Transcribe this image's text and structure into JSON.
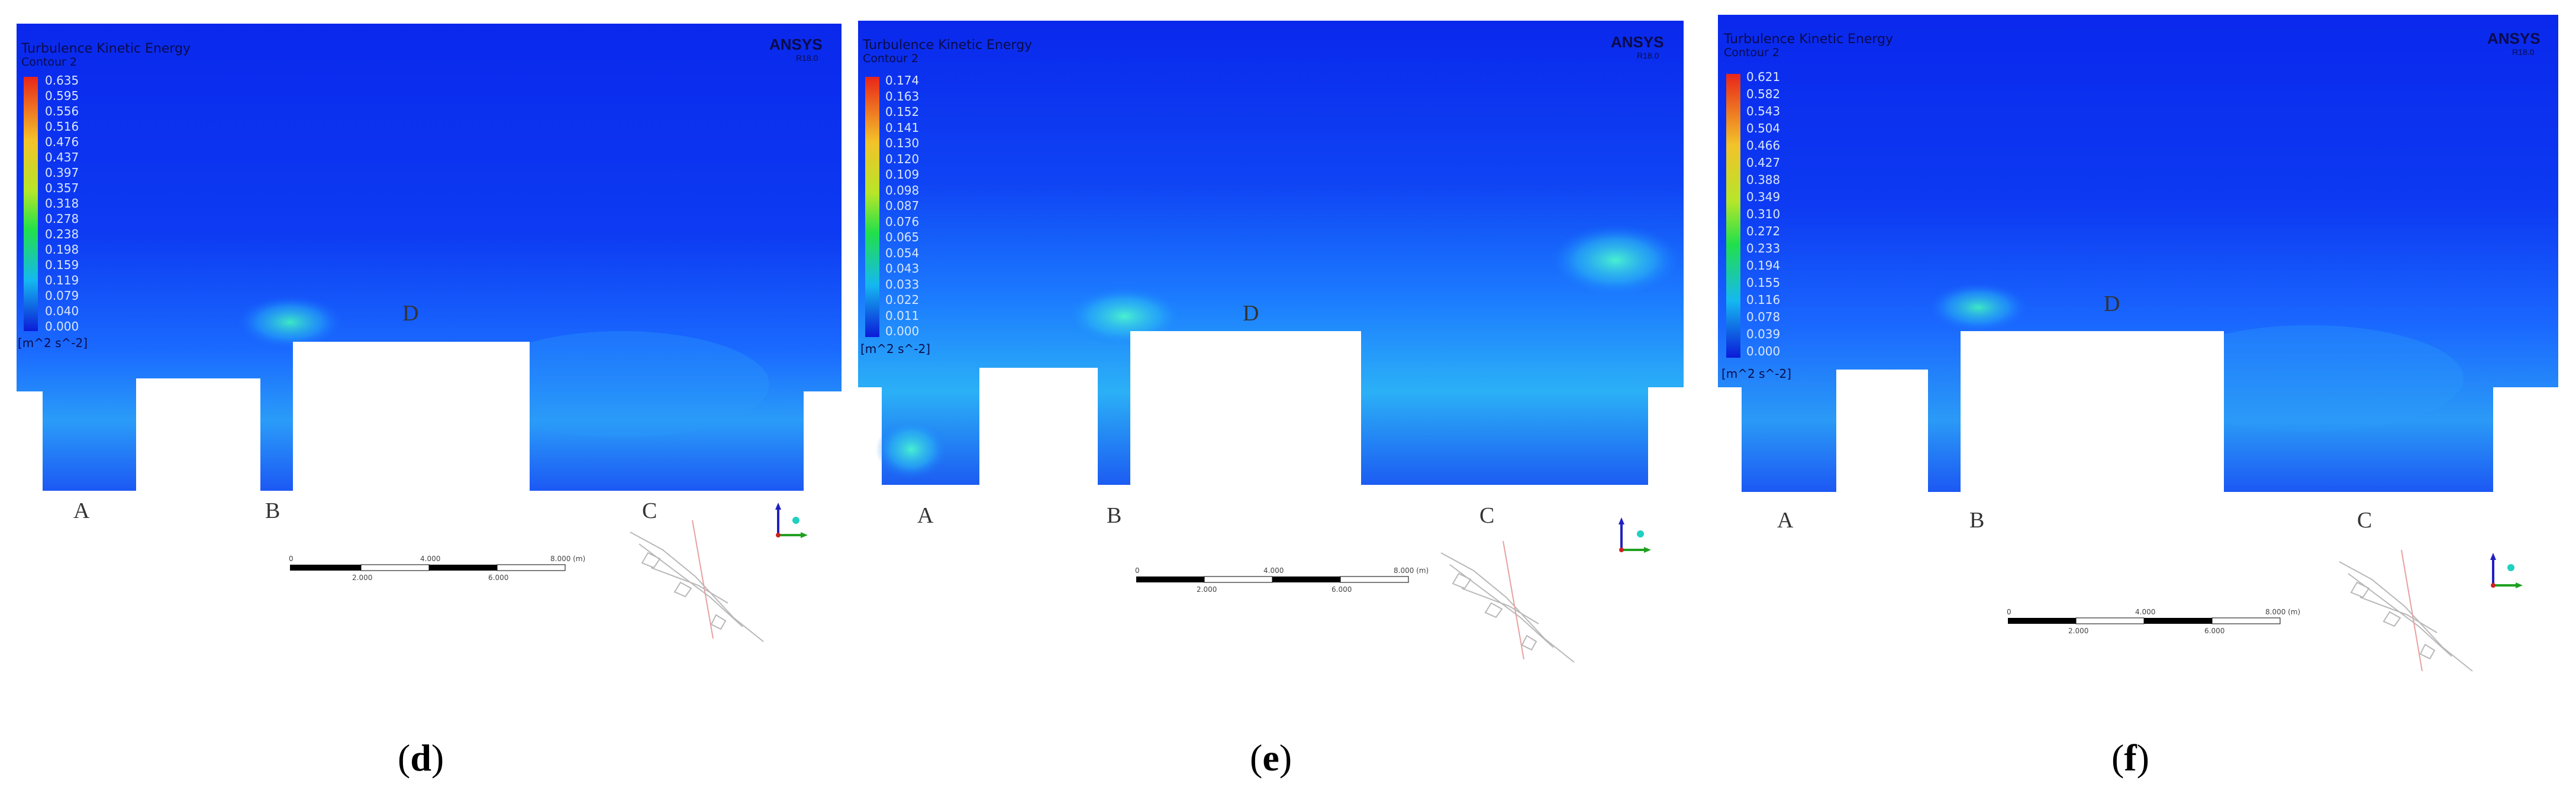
{
  "panels": [
    {
      "id": "d",
      "caption_open": "(",
      "caption_letter": "d",
      "caption_close": ")",
      "legend_title": "Turbulence Kinetic Energy",
      "legend_sub": "Contour 2",
      "legend_values": [
        "0.635",
        "0.595",
        "0.556",
        "0.516",
        "0.476",
        "0.437",
        "0.397",
        "0.357",
        "0.318",
        "0.278",
        "0.238",
        "0.198",
        "0.159",
        "0.119",
        "0.079",
        "0.040",
        "0.000"
      ],
      "legend_unit": "[m^2 s^-2]",
      "ansys": "ANSYS",
      "ansys_version": "R18.0",
      "labels": {
        "A": "A",
        "B": "B",
        "C": "C",
        "D": "D"
      },
      "scale_ticks_top": [
        "0",
        "4.000",
        "8.000  (m)"
      ],
      "scale_ticks_bottom": [
        "2.000",
        "6.000"
      ]
    },
    {
      "id": "e",
      "caption_open": "(",
      "caption_letter": "e",
      "caption_close": ")",
      "legend_title": "Turbulence Kinetic Energy",
      "legend_sub": "Contour 2",
      "legend_values": [
        "0.174",
        "0.163",
        "0.152",
        "0.141",
        "0.130",
        "0.120",
        "0.109",
        "0.098",
        "0.087",
        "0.076",
        "0.065",
        "0.054",
        "0.043",
        "0.033",
        "0.022",
        "0.011",
        "0.000"
      ],
      "legend_unit": "[m^2 s^-2]",
      "ansys": "ANSYS",
      "ansys_version": "R18.0",
      "labels": {
        "A": "A",
        "B": "B",
        "C": "C",
        "D": "D"
      },
      "scale_ticks_top": [
        "0",
        "4.000",
        "8.000  (m)"
      ],
      "scale_ticks_bottom": [
        "2.000",
        "6.000"
      ]
    },
    {
      "id": "f",
      "caption_open": "(",
      "caption_letter": "f",
      "caption_close": ")",
      "legend_title": "Turbulence Kinetic Energy",
      "legend_sub": "Contour 2",
      "legend_values": [
        "0.621",
        "0.582",
        "0.543",
        "0.504",
        "0.466",
        "0.427",
        "0.388",
        "0.349",
        "0.310",
        "0.272",
        "0.233",
        "0.194",
        "0.155",
        "0.116",
        "0.078",
        "0.039",
        "0.000"
      ],
      "legend_unit": "[m^2 s^-2]",
      "ansys": "ANSYS",
      "ansys_version": "R18.0",
      "labels": {
        "A": "A",
        "B": "B",
        "C": "C",
        "D": "D"
      },
      "scale_ticks_top": [
        "0",
        "4.000",
        "8.000  (m)"
      ],
      "scale_ticks_bottom": [
        "2.000",
        "6.000"
      ]
    }
  ],
  "colors": {
    "field_dark": "#0a2cf0",
    "field_mid": "#1a6cff",
    "field_light": "#2bb8f5",
    "hot_spot": "#3fe8c8",
    "legend_top": "#e8251a",
    "legend_mid": "#21e04a",
    "legend_bottom": "#0b1bd8"
  },
  "icons": [
    "axis-triad-icon",
    "site-map-thumbnail"
  ]
}
